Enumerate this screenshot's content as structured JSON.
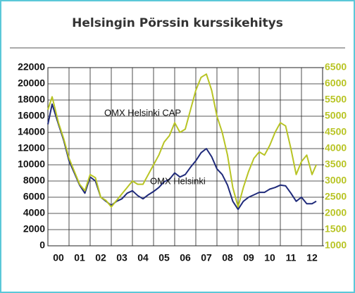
{
  "chart_data": {
    "type": "line",
    "title": "Helsingin Pörssin kurssikehitys",
    "x": [
      2000.0,
      2000.2,
      2000.5,
      2000.75,
      2001.0,
      2001.25,
      2001.5,
      2001.75,
      2002.0,
      2002.25,
      2002.5,
      2002.75,
      2003.0,
      2003.25,
      2003.5,
      2003.75,
      2004.0,
      2004.25,
      2004.5,
      2004.75,
      2005.0,
      2005.25,
      2005.5,
      2005.75,
      2006.0,
      2006.25,
      2006.5,
      2006.75,
      2007.0,
      2007.25,
      2007.5,
      2007.75,
      2008.0,
      2008.25,
      2008.5,
      2008.75,
      2009.0,
      2009.25,
      2009.5,
      2009.75,
      2010.0,
      2010.25,
      2010.5,
      2010.75,
      2011.0,
      2011.25,
      2011.5,
      2011.75,
      2012.0,
      2012.25,
      2012.5,
      2012.7
    ],
    "series": [
      {
        "name": "OMX Helsinki",
        "color": "#1f2a7a",
        "values": [
          15000,
          17500,
          15000,
          13000,
          10500,
          9000,
          7500,
          6500,
          8500,
          8000,
          6000,
          5500,
          5000,
          5500,
          5800,
          6500,
          6800,
          6200,
          5800,
          6300,
          6700,
          7200,
          7900,
          8200,
          9000,
          8500,
          8800,
          9700,
          10500,
          11500,
          12000,
          11000,
          9500,
          8800,
          7500,
          5500,
          4500,
          5500,
          6000,
          6300,
          6600,
          6600,
          7000,
          7200,
          7500,
          7400,
          6500,
          5500,
          6000,
          5200,
          5200,
          5500
        ]
      },
      {
        "name": "OMX Helsinki CAP",
        "color": "#b8c424",
        "axis": "y2",
        "values": [
          5200,
          5600,
          4800,
          4300,
          3700,
          3300,
          2900,
          2700,
          3200,
          3100,
          2500,
          2400,
          2200,
          2400,
          2600,
          2800,
          3000,
          2900,
          2900,
          3200,
          3500,
          3800,
          4200,
          4400,
          4800,
          4500,
          4600,
          5200,
          5800,
          6200,
          6300,
          5800,
          5000,
          4500,
          3800,
          2800,
          2200,
          2800,
          3300,
          3700,
          3900,
          3800,
          4100,
          4500,
          4800,
          4700,
          4000,
          3200,
          3600,
          3800,
          3200,
          3500
        ]
      }
    ],
    "xlim": [
      2000,
      2013
    ],
    "xticks": [
      {
        "value": 2000,
        "label": "00"
      },
      {
        "value": 2001,
        "label": "01"
      },
      {
        "value": 2002,
        "label": "02"
      },
      {
        "value": 2003,
        "label": "03"
      },
      {
        "value": 2004,
        "label": "04"
      },
      {
        "value": 2005,
        "label": "05"
      },
      {
        "value": 2006,
        "label": "06"
      },
      {
        "value": 2007,
        "label": "07"
      },
      {
        "value": 2008,
        "label": "08"
      },
      {
        "value": 2009,
        "label": "09"
      },
      {
        "value": 2010,
        "label": "10"
      },
      {
        "value": 2011,
        "label": "11"
      },
      {
        "value": 2012,
        "label": "12"
      }
    ],
    "ylim": [
      0,
      22000
    ],
    "yticks": [
      0,
      2000,
      4000,
      6000,
      8000,
      10000,
      12000,
      14000,
      16000,
      18000,
      20000,
      22000
    ],
    "y2lim": [
      1000,
      6500
    ],
    "y2ticks": [
      1000,
      1500,
      2000,
      2500,
      3000,
      3500,
      4000,
      4500,
      5000,
      5500,
      6000,
      6500
    ],
    "grid": true
  }
}
